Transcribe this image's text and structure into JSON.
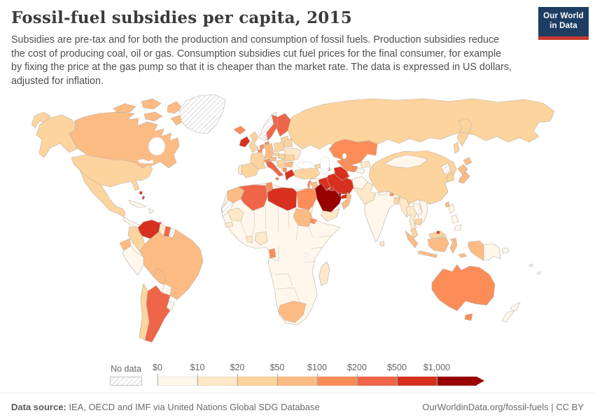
{
  "header": {
    "title": "Fossil-fuel subsidies per capita, 2015",
    "subtitle": "Subsidies are pre-tax and for both the production and consumption of fossil fuels. Production subsidies reduce\nthe cost of producing coal, oil or gas. Consumption subsidies cut fuel prices for the final consumer, for example\nby fixing the price at the gas pump so that it is cheaper than the market rate. The data is expressed in US dollars,\nadjusted for inflation.",
    "logo": {
      "line1": "Our World",
      "line2": "in Data",
      "bg_color": "#1D3D63",
      "accent_color": "#C93B2F"
    }
  },
  "footer": {
    "source_label": "Data source:",
    "source_text": " IEA, OECD and IMF via United Nations Global SDG Database",
    "attribution": "OurWorldinData.org/fossil-fuels | CC BY"
  },
  "chart_data": {
    "type": "choropleth-map",
    "title": "Fossil-fuel subsidies per capita, 2015",
    "unit": "US dollars per capita, inflation-adjusted",
    "legend": {
      "no_data_label": "No data",
      "position": "bottom",
      "bins": [
        {
          "label": "$0",
          "color": "#FFF7EC"
        },
        {
          "label": "$10",
          "color": "#FEE8C8"
        },
        {
          "label": "$20",
          "color": "#FDD49E"
        },
        {
          "label": "$50",
          "color": "#FDBB84"
        },
        {
          "label": "$100",
          "color": "#FC8D59"
        },
        {
          "label": "$200",
          "color": "#EF6548"
        },
        {
          "label": "$500",
          "color": "#D7301F"
        },
        {
          "label": "$1,000",
          "color": "#990000"
        }
      ]
    },
    "countries": {
      "russia": 2,
      "canada": 3,
      "greenland": "no-data",
      "usa": 2,
      "mexico": 2,
      "central-america": 0,
      "panama": 1,
      "cuba": 0,
      "hispaniola": 0,
      "bahamas": 6,
      "trinidad": 6,
      "venezuela": 6,
      "colombia": 2,
      "guyana": 1,
      "suriname": 5,
      "french-guiana": "no-data",
      "ecuador": 3,
      "peru": 0,
      "brazil": 3,
      "bolivia": 3,
      "paraguay": 0,
      "uruguay": 0,
      "chile": 2,
      "argentina": 5,
      "iceland": 4,
      "ireland": 6,
      "uk": 2,
      "norway": "no-data",
      "sweden": 5,
      "finland": 5,
      "denmark": 4,
      "baltics": 2,
      "netherlands": 4,
      "belgium": 4,
      "germany": 3,
      "poland": 2,
      "belarus": 2,
      "ukraine": 1,
      "france": 2,
      "spain": 2,
      "portugal": 1,
      "switzerland": 4,
      "austria": 3,
      "czechia": 2,
      "hungary": 2,
      "balkans": 2,
      "romania": 2,
      "bulgaria": 3,
      "albania": 4,
      "greece": 6,
      "italy": 5,
      "turkey": 2,
      "syria": 0,
      "iraq": 6,
      "iran": 6,
      "israel": 4,
      "jordan": 3,
      "saudi-arabia": 7,
      "kuwait": 6,
      "qatar": 7,
      "uae": 6,
      "oman": 3,
      "yemen": 1,
      "georgia": 2,
      "azerbaijan": 4,
      "kazakhstan": 4,
      "uzbekistan": 4,
      "turkmenistan": 6,
      "kyrgyzstan": 1,
      "tajikistan": 0,
      "afghanistan": 0,
      "pakistan": 1,
      "india": 0,
      "nepal": 0,
      "bhutan": 4,
      "bangladesh": 2,
      "sri-lanka": 1,
      "china": 2,
      "mongolia": 0,
      "north-korea": "no-data",
      "south-korea": 2,
      "japan": 3,
      "taiwan": 3,
      "myanmar": 1,
      "thailand": 1,
      "laos": 0,
      "vietnam": 0,
      "cambodia": 2,
      "malaysia": 2,
      "brunei": 6,
      "philippines": 0,
      "indonesia": 3,
      "papua-new-guinea": 0,
      "pacific-islands": 0,
      "australia": 4,
      "new-zealand": 0,
      "africa": 0,
      "morocco": 3,
      "western-sahara": "no-data",
      "algeria": 5,
      "tunisia": 4,
      "libya": 6,
      "egypt": 4,
      "mauritania": 1,
      "senegal": 1,
      "sudan": 3,
      "eritrea": 4,
      "nigeria": 1,
      "ghana": 1,
      "gabon": 4,
      "south-africa": 3,
      "madagascar": 1
    }
  }
}
